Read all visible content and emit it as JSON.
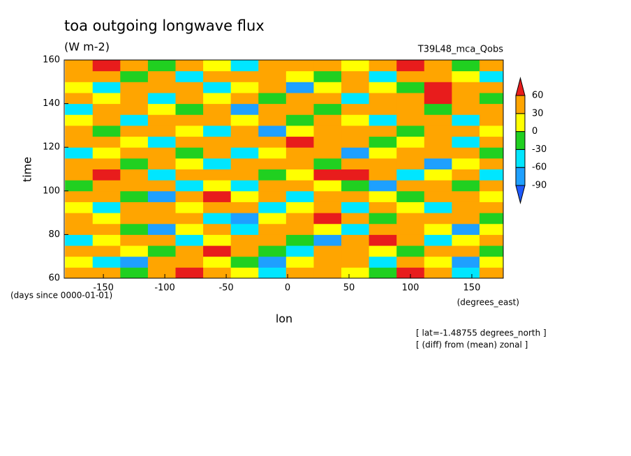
{
  "chart_data": {
    "type": "contour",
    "title": "toa outgoing longwave flux",
    "subtitle": "(W m-2)",
    "annotation": "T39L48_mca_Qobs",
    "x_label": "lon",
    "y_label": "time",
    "y_unit_label": "(days since 0000-01-01)",
    "x_unit_label": "(degrees_east)",
    "notes": [
      "[ lat=-1.48755 degrees_north ]",
      "[ (diff) from (mean) zonal ]"
    ],
    "xlim": [
      -181.9,
      175.6
    ],
    "ylim": [
      60,
      160
    ],
    "xticks": [
      -150,
      -100,
      -50,
      0,
      50,
      100,
      150
    ],
    "yticks": [
      60,
      80,
      100,
      120,
      140,
      160
    ],
    "levels": [
      -90,
      -60,
      -30,
      0,
      30,
      60
    ],
    "colors": [
      "#1e5aff",
      "#1ea0ff",
      "#00e6ff",
      "#20d020",
      "#ffff00",
      "#ffa500",
      "#e81c1c"
    ],
    "x": [
      -170,
      -147.5,
      -125,
      -102.5,
      -80,
      -57.5,
      -35,
      -12.5,
      10,
      32.5,
      55,
      77.5,
      100,
      122.5,
      145,
      167.5
    ],
    "y": [
      62.5,
      67.5,
      72.5,
      77.5,
      82.5,
      87.5,
      92.5,
      97.5,
      102.5,
      107.5,
      112.5,
      117.5,
      122.5,
      127.5,
      132.5,
      137.5,
      142.5,
      147.5,
      152.5,
      157.5
    ],
    "z": [
      [
        40,
        35,
        -20,
        50,
        65,
        30,
        10,
        -40,
        35,
        45,
        20,
        -10,
        70,
        40,
        -50,
        30
      ],
      [
        20,
        -40,
        -70,
        35,
        40,
        15,
        -30,
        -65,
        20,
        55,
        40,
        -35,
        30,
        20,
        -75,
        10
      ],
      [
        45,
        30,
        10,
        -20,
        35,
        62,
        40,
        -10,
        -45,
        30,
        50,
        15,
        -20,
        45,
        35,
        -30
      ],
      [
        -35,
        15,
        40,
        45,
        -60,
        20,
        30,
        45,
        -20,
        -70,
        40,
        65,
        30,
        -40,
        20,
        40
      ],
      [
        30,
        50,
        -25,
        -75,
        10,
        40,
        -40,
        35,
        50,
        20,
        -35,
        30,
        45,
        10,
        -65,
        25
      ],
      [
        55,
        20,
        40,
        30,
        45,
        -50,
        -80,
        20,
        40,
        65,
        30,
        -20,
        35,
        40,
        30,
        -10
      ],
      [
        10,
        -45,
        35,
        50,
        20,
        30,
        40,
        -35,
        15,
        45,
        -60,
        40,
        20,
        -50,
        45,
        35
      ],
      [
        40,
        35,
        -20,
        -70,
        40,
        65,
        20,
        30,
        -40,
        30,
        40,
        15,
        -30,
        35,
        55,
        20
      ],
      [
        -20,
        40,
        45,
        30,
        -35,
        20,
        -55,
        40,
        45,
        20,
        -25,
        -70,
        40,
        30,
        -20,
        45
      ],
      [
        35,
        65,
        30,
        -40,
        40,
        45,
        30,
        -30,
        20,
        70,
        75,
        30,
        -45,
        20,
        40,
        -35
      ],
      [
        45,
        30,
        -30,
        40,
        20,
        -60,
        40,
        50,
        30,
        -20,
        40,
        45,
        30,
        -65,
        20,
        30
      ],
      [
        -60,
        20,
        40,
        35,
        -20,
        30,
        -40,
        20,
        45,
        35,
        -70,
        20,
        40,
        35,
        50,
        -25
      ],
      [
        30,
        45,
        20,
        -50,
        40,
        35,
        45,
        30,
        62,
        40,
        30,
        -30,
        20,
        45,
        -40,
        35
      ],
      [
        40,
        -30,
        35,
        45,
        20,
        -45,
        30,
        -75,
        20,
        30,
        45,
        35,
        -20,
        40,
        30,
        20
      ],
      [
        25,
        40,
        -55,
        30,
        45,
        30,
        20,
        40,
        -30,
        45,
        20,
        -50,
        35,
        30,
        -60,
        40
      ],
      [
        -40,
        30,
        45,
        20,
        -30,
        40,
        -65,
        30,
        40,
        -20,
        35,
        40,
        30,
        -30,
        45,
        30
      ],
      [
        35,
        20,
        30,
        -60,
        40,
        25,
        45,
        -20,
        30,
        40,
        -45,
        30,
        45,
        70,
        35,
        -20
      ],
      [
        20,
        -50,
        40,
        35,
        30,
        -35,
        20,
        40,
        -70,
        25,
        40,
        20,
        -30,
        65,
        30,
        45
      ],
      [
        45,
        30,
        -20,
        40,
        -45,
        30,
        40,
        35,
        20,
        -30,
        45,
        -55,
        40,
        30,
        20,
        -40
      ],
      [
        30,
        65,
        40,
        -30,
        35,
        20,
        -40,
        45,
        30,
        40,
        20,
        35,
        62,
        40,
        -20,
        30
      ]
    ]
  }
}
